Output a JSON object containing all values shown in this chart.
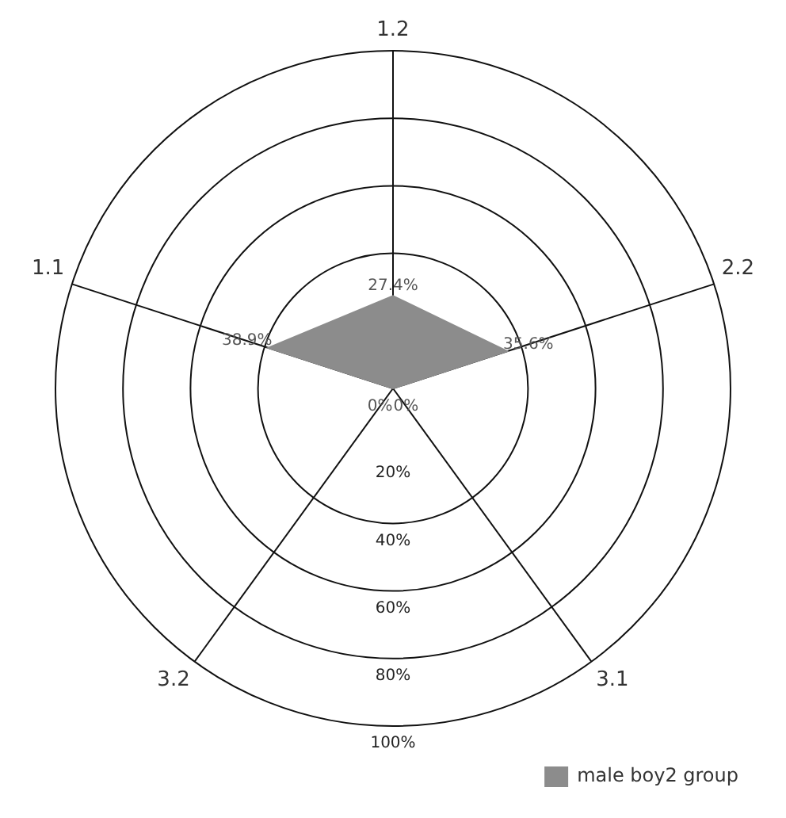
{
  "chart_data": {
    "type": "radar",
    "categories": [
      "1.2",
      "2.2",
      "3.1",
      "3.2",
      "1.1"
    ],
    "series": [
      {
        "name": "male boy2 group",
        "color": "#8c8c8c",
        "values": [
          27.4,
          35.6,
          0,
          0,
          38.9
        ],
        "value_labels": [
          "27.4%",
          "35.6%",
          "0%",
          "0%",
          "38.9%"
        ]
      }
    ],
    "ylim": [
      0,
      100
    ],
    "yticks": [
      {
        "value": 20,
        "label": "20%"
      },
      {
        "value": 40,
        "label": "40%"
      },
      {
        "value": 60,
        "label": "60%"
      },
      {
        "value": 80,
        "label": "80%"
      },
      {
        "value": 100,
        "label": "100%"
      }
    ],
    "grid": true,
    "legend": "bottom right",
    "marker": "none"
  }
}
